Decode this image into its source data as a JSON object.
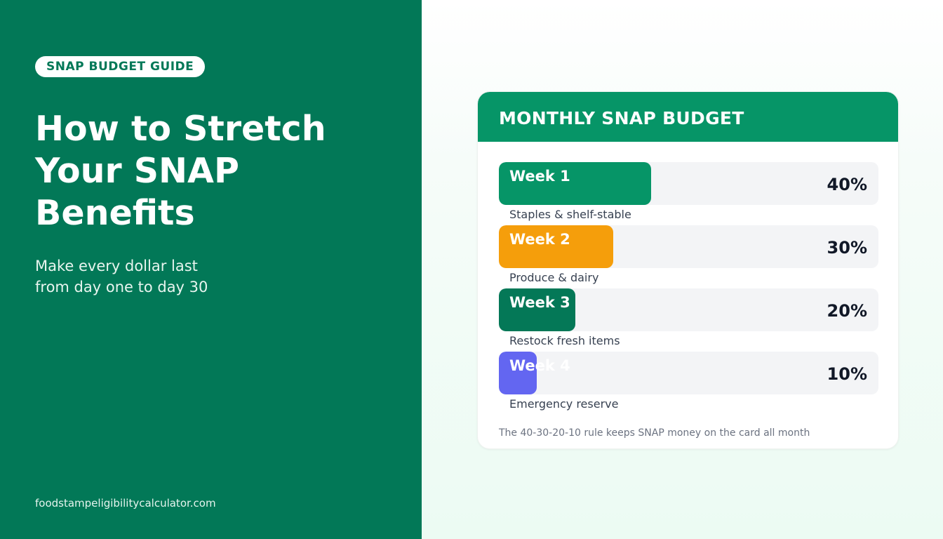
{
  "left": {
    "badge": "SNAP BUDGET GUIDE",
    "headline": "How to Stretch\nYour SNAP\nBenefits",
    "subhead": "Make every dollar last\nfrom day one to day 30",
    "site_url": "foodstampeligibilitycalculator.com"
  },
  "card": {
    "title": "MONTHLY SNAP BUDGET",
    "weeks": [
      {
        "label": "Week 1",
        "percent_label": "40%",
        "percent": 40,
        "description": "Staples & shelf-stable",
        "color": "#069567"
      },
      {
        "label": "Week 2",
        "percent_label": "30%",
        "percent": 30,
        "description": "Produce & dairy",
        "color": "#f59e0b"
      },
      {
        "label": "Week 3",
        "percent_label": "20%",
        "percent": 20,
        "description": "Restock fresh items",
        "color": "#047857"
      },
      {
        "label": "Week 4",
        "percent_label": "10%",
        "percent": 10,
        "description": "Emergency reserve",
        "color": "#6366f1"
      }
    ],
    "footnote": "The 40-30-20-10 rule keeps SNAP money on the card all month"
  },
  "colors": {
    "left_background": "#027857",
    "header_background": "#069567",
    "track_background": "#f3f4f6"
  }
}
